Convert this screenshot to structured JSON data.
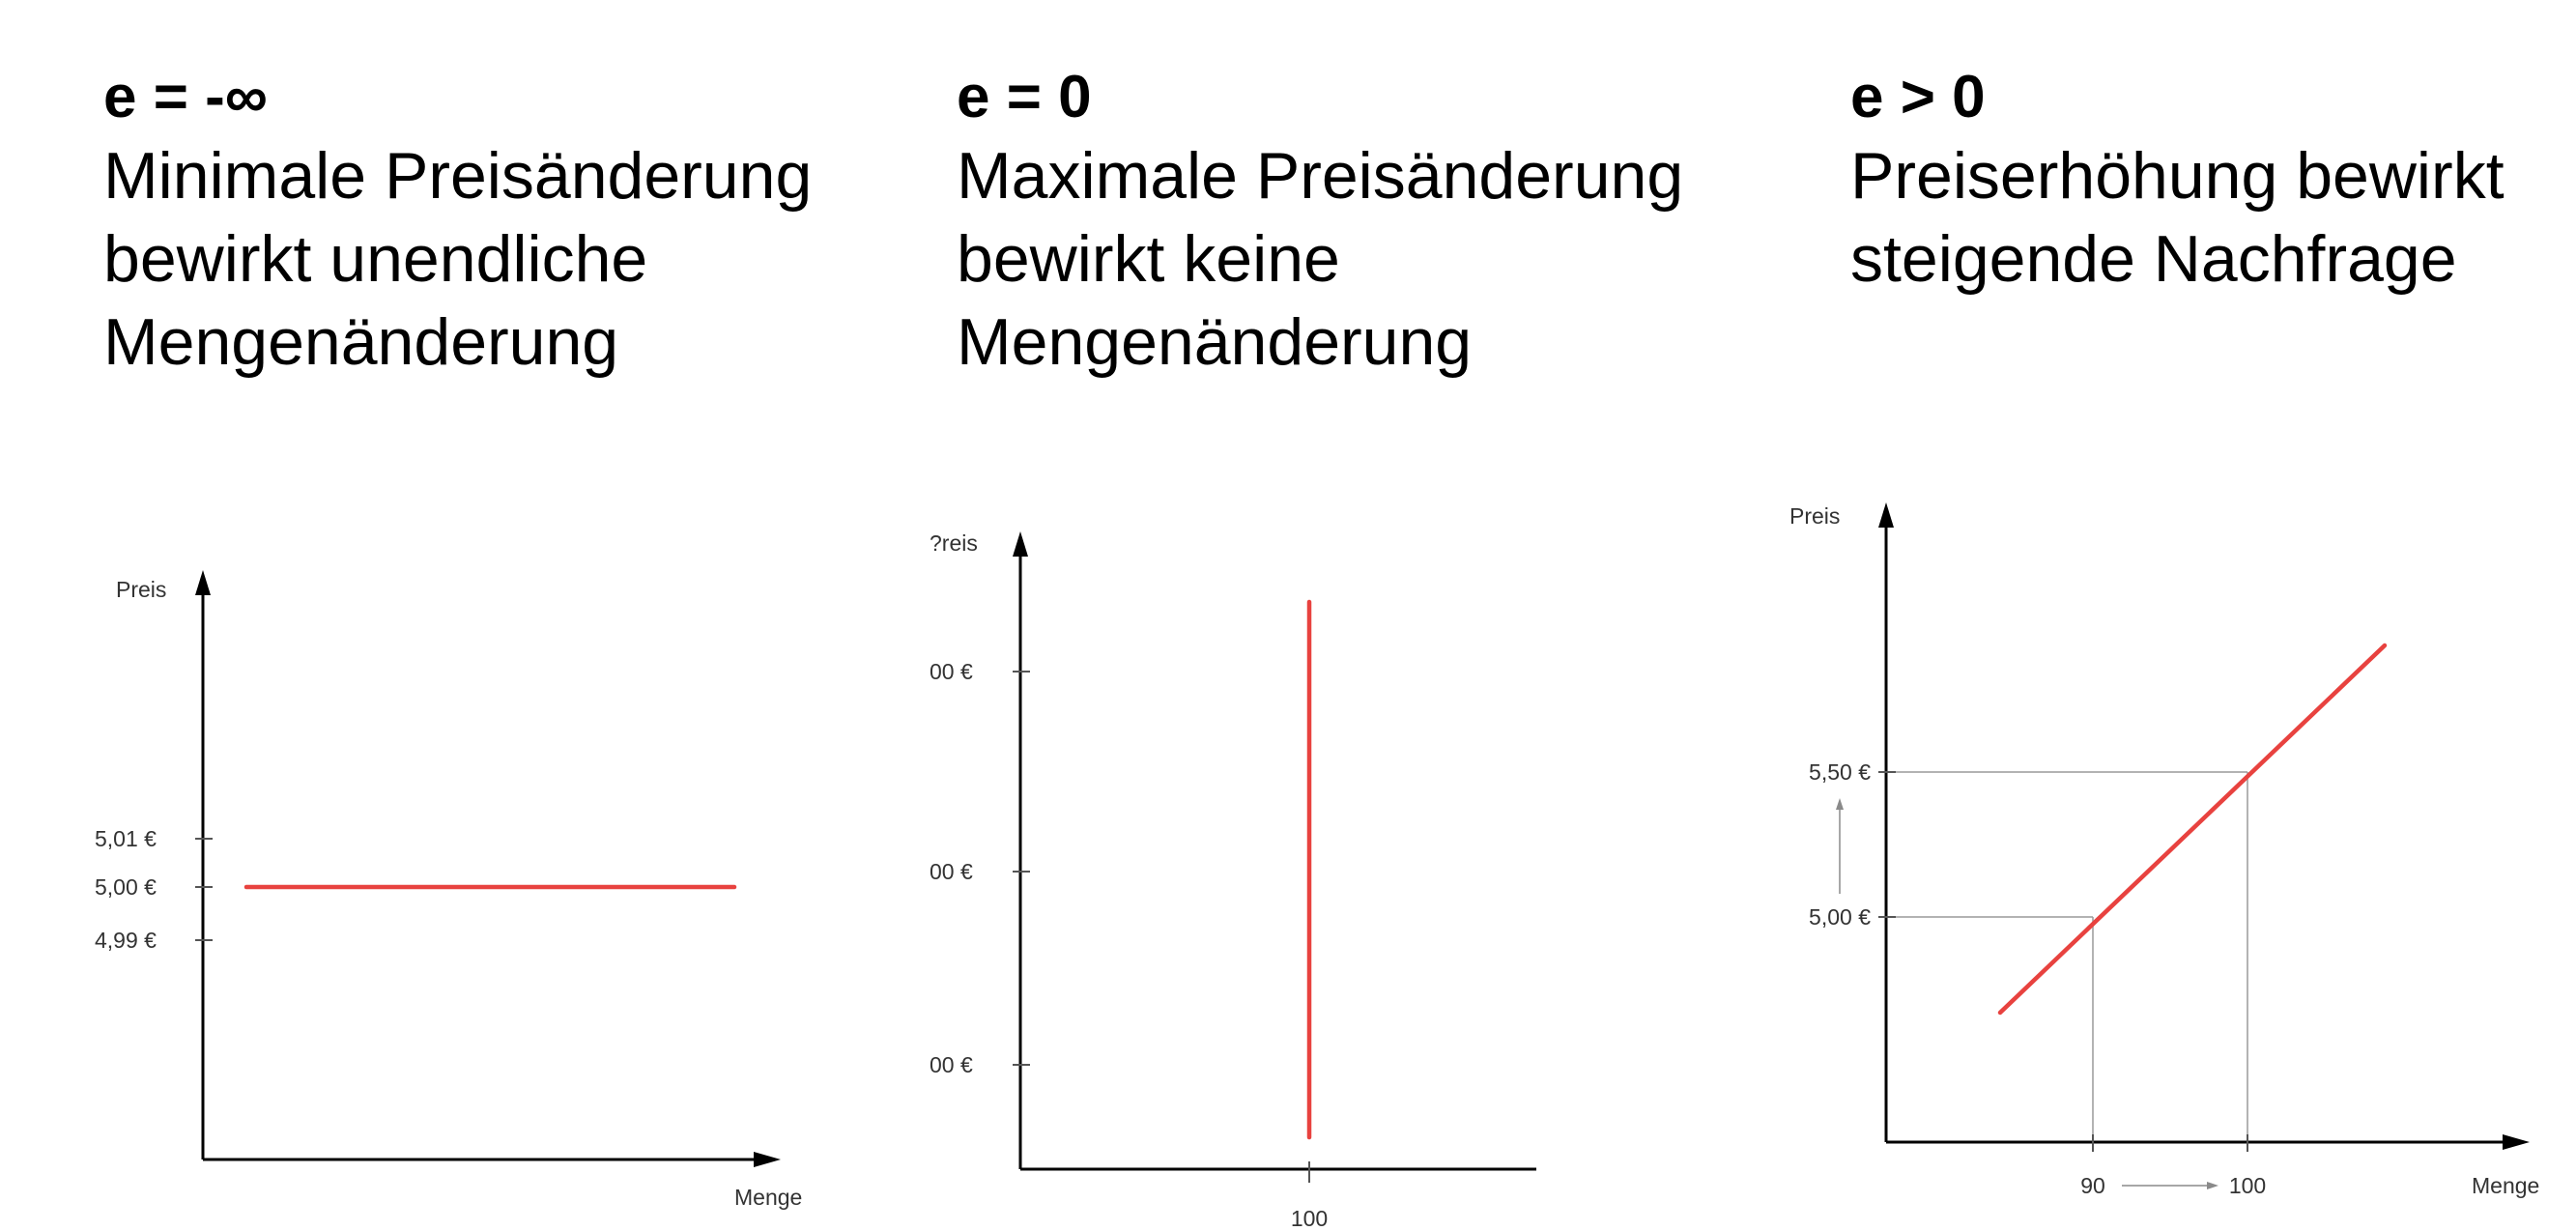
{
  "colors": {
    "curve": "#e8423f",
    "axis": "#000000",
    "guide": "#9a9a9a"
  },
  "panels": [
    {
      "formula": "e = -∞",
      "lines": [
        "Minimale Preisänderung",
        "bewirkt unendliche",
        "Mengenänderung"
      ]
    },
    {
      "formula": "e = 0",
      "lines": [
        "Maximale Preisänderung",
        "bewirkt keine",
        "Mengenänderung"
      ]
    },
    {
      "formula": "e > 0",
      "lines": [
        "Preiserhöhung bewirkt",
        "steigende Nachfrage"
      ]
    }
  ],
  "chart_data": [
    {
      "type": "line",
      "title": "",
      "xlabel": "Menge",
      "ylabel": "Preis",
      "y_ticks": [
        "5,01 €",
        "5,00 €",
        "4,99 €"
      ],
      "x_ticks": [],
      "series": [
        {
          "values": [
            5.0,
            5.0
          ]
        }
      ],
      "note": "perfectly elastic: horizontal demand line at 5,00 €"
    },
    {
      "type": "line",
      "title": "",
      "xlabel": "",
      "ylabel": "?reis",
      "y_ticks": [
        "00 €",
        "00 €",
        "00 €"
      ],
      "x_ticks": [
        "100"
      ],
      "series": [
        {
          "x": [
            100,
            100
          ]
        }
      ],
      "note": "perfectly inelastic: vertical demand line at Menge 100"
    },
    {
      "type": "line",
      "title": "",
      "xlabel": "Menge",
      "ylabel": "Preis",
      "y_ticks": [
        "5,50 €",
        "5,00 €"
      ],
      "x_ticks": [
        "90",
        "100"
      ],
      "points": [
        {
          "x": 90,
          "y": 5.0
        },
        {
          "x": 100,
          "y": 5.5
        }
      ],
      "series": [
        {
          "x": [
            84,
            90,
            100,
            108
          ],
          "y": [
            4.7,
            5.0,
            5.5,
            5.9
          ]
        }
      ]
    }
  ]
}
